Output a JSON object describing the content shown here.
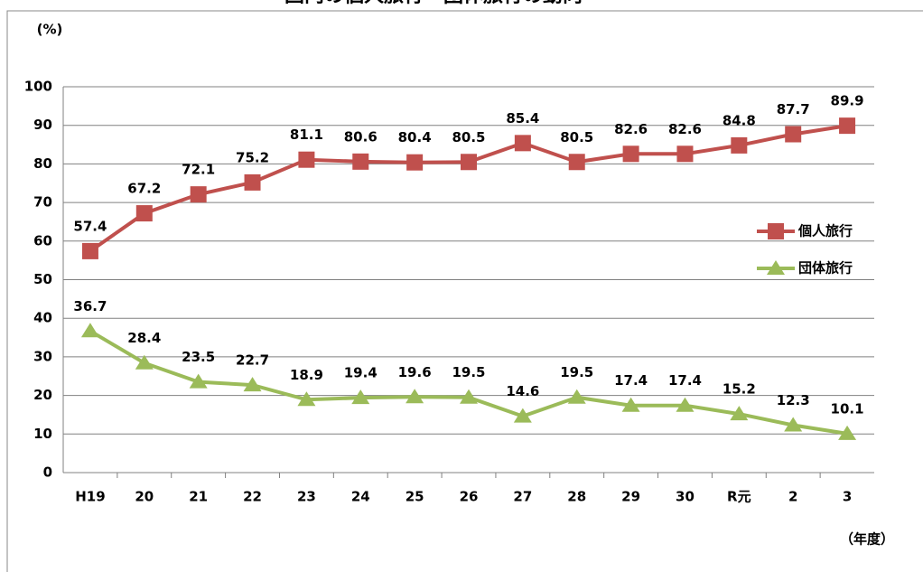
{
  "chart_data": {
    "type": "line",
    "title": "国内の個人旅行・団体旅行の動向",
    "y_axis_label": "(%)",
    "x_axis_label": "（年度）",
    "categories": [
      "H19",
      "20",
      "21",
      "22",
      "23",
      "24",
      "25",
      "26",
      "27",
      "28",
      "29",
      "30",
      "R元",
      "2",
      "3"
    ],
    "series": [
      {
        "name": "個人旅行",
        "color": "#c0504d",
        "marker": "square",
        "values": [
          57.4,
          67.2,
          72.1,
          75.2,
          81.1,
          80.6,
          80.4,
          80.5,
          85.4,
          80.5,
          82.6,
          82.6,
          84.8,
          87.7,
          89.9
        ]
      },
      {
        "name": "団体旅行",
        "color": "#9bbb59",
        "marker": "triangle",
        "values": [
          36.7,
          28.4,
          23.5,
          22.7,
          18.9,
          19.4,
          19.6,
          19.5,
          14.6,
          19.5,
          17.4,
          17.4,
          15.2,
          12.3,
          10.1
        ]
      }
    ],
    "ylim": [
      0,
      100
    ],
    "yticks": [
      0,
      10,
      20,
      30,
      40,
      50,
      60,
      70,
      80,
      90,
      100
    ],
    "grid": true,
    "legend": "right"
  }
}
